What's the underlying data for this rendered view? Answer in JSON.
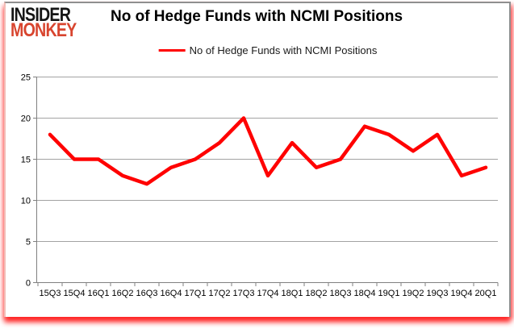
{
  "logo": {
    "line1": "INSIDER",
    "line2": "MONKEY"
  },
  "header": {
    "title": "No of Hedge Funds with NCMI Positions"
  },
  "legend": {
    "label": "No of Hedge Funds with NCMI Positions"
  },
  "colors": {
    "series": "#ff0000",
    "gridline": "#a3a3a3",
    "axis": "#808080",
    "label_text": "#000000",
    "logo_primary": "#151515",
    "logo_accent": "#d8452f"
  },
  "chart_data": {
    "type": "line",
    "title": "No of Hedge Funds with NCMI Positions",
    "series_name": "No of Hedge Funds with NCMI Positions",
    "categories": [
      "15Q3",
      "15Q4",
      "16Q1",
      "16Q2",
      "16Q3",
      "16Q4",
      "17Q1",
      "17Q2",
      "17Q3",
      "17Q4",
      "18Q1",
      "18Q2",
      "18Q3",
      "18Q4",
      "19Q1",
      "19Q2",
      "19Q3",
      "19Q4",
      "20Q1"
    ],
    "values": [
      18,
      15,
      15,
      13,
      12,
      14,
      15,
      17,
      20,
      13,
      17,
      14,
      15,
      19,
      18,
      16,
      18,
      13,
      14
    ],
    "xlabel": "",
    "ylabel": "",
    "ylim": [
      0,
      25
    ],
    "yticks": [
      0,
      5,
      10,
      15,
      20,
      25
    ],
    "grid": true,
    "legend_position": "top-center"
  }
}
